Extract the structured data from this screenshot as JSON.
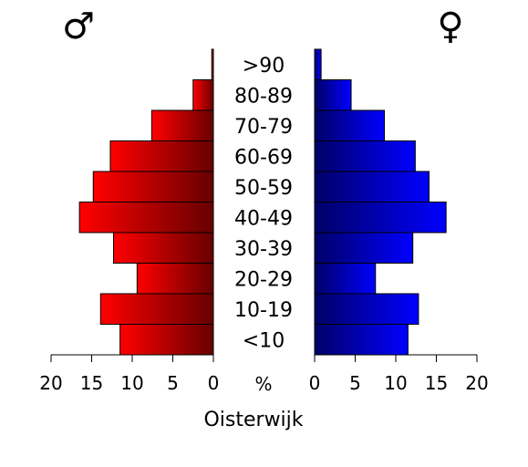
{
  "chart_data": {
    "type": "bar",
    "subtype": "population-pyramid",
    "title": "Oisterwijk",
    "categories": [
      "<10",
      "10-19",
      "20-29",
      "30-39",
      "40-49",
      "50-59",
      "60-69",
      "70-79",
      "80-89",
      ">90"
    ],
    "series": [
      {
        "name": "♂",
        "side": "left",
        "color_light": "#ff0000",
        "color_dark": "#660000",
        "values": [
          11.5,
          13.9,
          9.4,
          12.3,
          16.5,
          14.8,
          12.7,
          7.6,
          2.5,
          0.2
        ]
      },
      {
        "name": "♀",
        "side": "right",
        "color_light": "#0000ff",
        "color_dark": "#000066",
        "values": [
          11.5,
          12.8,
          7.5,
          12.1,
          16.2,
          14.1,
          12.4,
          8.6,
          4.5,
          0.8
        ]
      }
    ],
    "xlim": [
      0,
      20
    ],
    "ticks": [
      0,
      5,
      10,
      15,
      20
    ],
    "unit_label": "%",
    "tick_labels_left": [
      "20",
      "15",
      "10",
      "5",
      "0"
    ],
    "tick_labels_right": [
      "0",
      "5",
      "10",
      "15",
      "20"
    ]
  }
}
